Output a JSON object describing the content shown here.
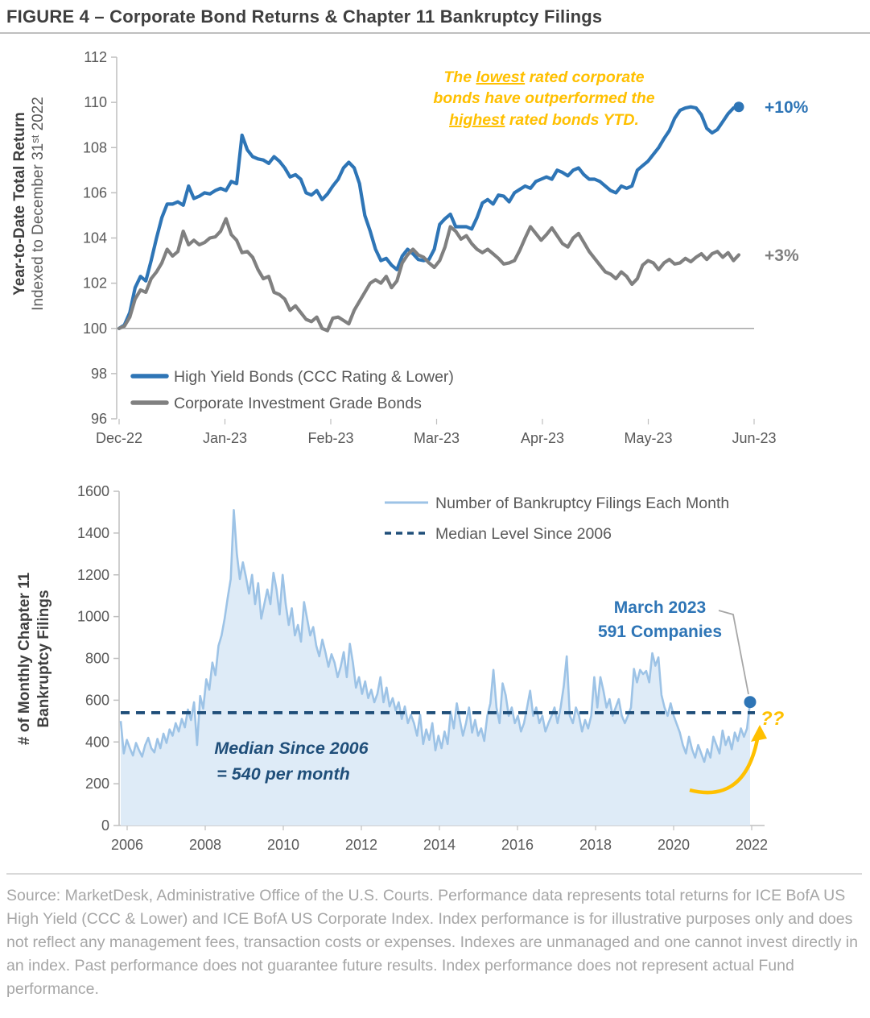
{
  "title": "FIGURE 4 – Corporate Bond Returns & Chapter 11 Bankruptcy Filings",
  "footer": {
    "source_text": "Source: MarketDesk, Administrative Office of the U.S. Courts. Performance data represents total returns for ICE BofA US High Yield (CCC & Lower) and ICE BofA US Corporate Index. Index performance is for illustrative purposes only and does not reflect any management fees, transaction costs or expenses. Indexes are unmanaged and one cannot invest directly in an index. Past performance does not guarantee future results. Index performance does not represent actual Fund performance."
  },
  "chart_data": [
    {
      "type": "line",
      "ylabel_line1": "Year-to-Date Total Return",
      "ylabel_line2_pre": "Indexed to December 31",
      "ylabel_line2_sup": "st",
      "ylabel_line2_post": " 2022",
      "y_ticks": [
        112,
        110,
        108,
        106,
        104,
        102,
        100,
        98,
        96
      ],
      "ylim": [
        96,
        112
      ],
      "baseline": 100,
      "grid": false,
      "legend_position": "bottom-left-inside",
      "categories": [
        "Dec-22",
        "Jan-23",
        "Feb-23",
        "Mar-23",
        "Apr-23",
        "May-23",
        "Jun-23"
      ],
      "series": [
        {
          "name": "High Yield Bonds (CCC Rating & Lower)",
          "color": "#2E75B6",
          "end_label": "+10%",
          "values": [
            100.0,
            100.15,
            100.7,
            101.8,
            102.3,
            102.1,
            103.0,
            104.0,
            104.9,
            105.5,
            105.5,
            105.6,
            105.45,
            106.3,
            105.75,
            105.85,
            106.0,
            105.95,
            106.1,
            106.2,
            106.1,
            106.5,
            106.4,
            108.55,
            107.9,
            107.6,
            107.5,
            107.45,
            107.3,
            107.6,
            107.4,
            107.1,
            106.7,
            106.8,
            106.6,
            106.0,
            105.9,
            106.1,
            105.7,
            105.95,
            106.3,
            106.6,
            107.1,
            107.35,
            107.1,
            106.4,
            105.0,
            104.3,
            103.5,
            103.0,
            103.1,
            102.8,
            102.6,
            103.2,
            103.5,
            103.3,
            103.05,
            103.0,
            103.05,
            103.5,
            104.6,
            104.85,
            105.05,
            104.5,
            104.5,
            104.5,
            104.4,
            104.9,
            105.55,
            105.7,
            105.5,
            105.9,
            105.85,
            105.6,
            106.0,
            106.15,
            106.3,
            106.2,
            106.5,
            106.6,
            106.7,
            106.6,
            107.0,
            106.9,
            106.75,
            107.0,
            107.1,
            106.8,
            106.6,
            106.6,
            106.5,
            106.3,
            106.1,
            106.0,
            106.3,
            106.2,
            106.3,
            107.0,
            107.2,
            107.4,
            107.7,
            108.0,
            108.4,
            108.75,
            109.3,
            109.65,
            109.75,
            109.8,
            109.75,
            109.45,
            108.85,
            108.65,
            108.8,
            109.15,
            109.5,
            109.75,
            109.8
          ]
        },
        {
          "name": "Corporate Investment Grade Bonds",
          "color": "#808080",
          "end_label": "+3%",
          "values": [
            100.0,
            100.1,
            100.5,
            101.3,
            101.7,
            101.6,
            102.2,
            102.5,
            102.9,
            103.5,
            103.2,
            103.4,
            104.3,
            103.7,
            103.9,
            103.7,
            103.8,
            104.0,
            104.05,
            104.3,
            104.85,
            104.15,
            103.9,
            103.35,
            103.4,
            103.15,
            102.6,
            102.2,
            102.3,
            101.6,
            101.5,
            101.3,
            100.8,
            101.0,
            100.7,
            100.4,
            100.3,
            100.5,
            100.0,
            99.9,
            100.45,
            100.5,
            100.35,
            100.2,
            100.8,
            101.2,
            101.6,
            102.0,
            102.15,
            102.0,
            102.3,
            101.8,
            102.1,
            102.9,
            103.25,
            103.5,
            103.25,
            103.15,
            102.9,
            102.7,
            103.0,
            103.6,
            104.5,
            104.3,
            103.95,
            104.1,
            103.75,
            103.5,
            103.35,
            103.5,
            103.3,
            103.1,
            102.85,
            102.9,
            103.0,
            103.45,
            104.0,
            104.5,
            104.2,
            103.9,
            104.15,
            104.45,
            104.1,
            103.75,
            103.6,
            104.0,
            104.2,
            103.8,
            103.4,
            103.1,
            102.8,
            102.5,
            102.4,
            102.2,
            102.5,
            102.3,
            101.95,
            102.2,
            102.8,
            103.0,
            102.9,
            102.6,
            102.9,
            103.05,
            102.85,
            102.9,
            103.1,
            102.95,
            103.15,
            103.3,
            103.05,
            103.3,
            103.4,
            103.15,
            103.35,
            103.0,
            103.25
          ]
        }
      ],
      "annotation": {
        "line1_pre": "The ",
        "line1_u": "lowest",
        "line1_post": " rated corporate",
        "line2": "bonds have outperformed  the",
        "line3_u": "highest",
        "line3_post": " rated bonds YTD.",
        "color": "#FFC000"
      }
    },
    {
      "type": "area",
      "ylabel_line1": "# of Monthly Chapter 11",
      "ylabel_line2": "Bankruptcy Filings",
      "series_name": "Number of Bankruptcy Filings Each Month",
      "median_name": "Median Level Since 2006",
      "median_value": 540,
      "y_ticks": [
        1600,
        1400,
        1200,
        1000,
        800,
        600,
        400,
        200,
        0
      ],
      "ylim": [
        0,
        1600
      ],
      "x_ticks": [
        "2006",
        "2008",
        "2010",
        "2012",
        "2014",
        "2016",
        "2018",
        "2020",
        "2022"
      ],
      "x_start": "2006-01",
      "x_end": "2023-03",
      "values": [
        500,
        345,
        410,
        370,
        335,
        395,
        360,
        330,
        385,
        420,
        370,
        350,
        415,
        370,
        440,
        395,
        460,
        430,
        490,
        450,
        510,
        470,
        555,
        505,
        590,
        385,
        620,
        560,
        700,
        650,
        780,
        720,
        860,
        910,
        990,
        1090,
        1180,
        1510,
        1300,
        1180,
        1260,
        1190,
        1110,
        1200,
        1060,
        1160,
        990,
        1060,
        1130,
        1060,
        1210,
        1130,
        1010,
        1200,
        1060,
        960,
        1040,
        910,
        960,
        880,
        1070,
        990,
        910,
        950,
        860,
        810,
        890,
        830,
        760,
        820,
        780,
        710,
        760,
        830,
        710,
        870,
        780,
        660,
        710,
        630,
        690,
        610,
        650,
        590,
        630,
        710,
        590,
        660,
        570,
        610,
        550,
        590,
        510,
        570,
        490,
        530,
        490,
        430,
        530,
        390,
        460,
        410,
        490,
        360,
        430,
        370,
        450,
        390,
        545,
        465,
        585,
        505,
        430,
        490,
        565,
        445,
        505,
        430,
        465,
        405,
        525,
        585,
        745,
        565,
        490,
        680,
        625,
        525,
        565,
        490,
        525,
        450,
        490,
        565,
        645,
        525,
        565,
        490,
        525,
        450,
        490,
        525,
        565,
        490,
        565,
        665,
        810,
        525,
        490,
        565,
        525,
        450,
        505,
        465,
        525,
        710,
        565,
        710,
        645,
        565,
        605,
        525,
        565,
        605,
        525,
        490,
        525,
        565,
        750,
        685,
        745,
        725,
        740,
        685,
        825,
        765,
        805,
        625,
        565,
        525,
        585,
        525,
        485,
        445,
        385,
        345,
        425,
        365,
        325,
        385,
        345,
        305,
        365,
        325,
        425,
        385,
        345,
        455,
        385,
        425,
        365,
        445,
        405,
        465,
        425,
        465,
        591
      ],
      "annotations": {
        "march_line1": "March 2023",
        "march_line2": "591 Companies",
        "march_value": 591,
        "median_line1": "Median Since 2006",
        "median_line2": "=  540 per month",
        "unknown": "??"
      },
      "colors": {
        "line": "#9DC3E6",
        "fill": "#DEEBF7",
        "median": "#1F4E79",
        "dot": "#2E75B6",
        "arrow": "#FFC000"
      }
    }
  ]
}
